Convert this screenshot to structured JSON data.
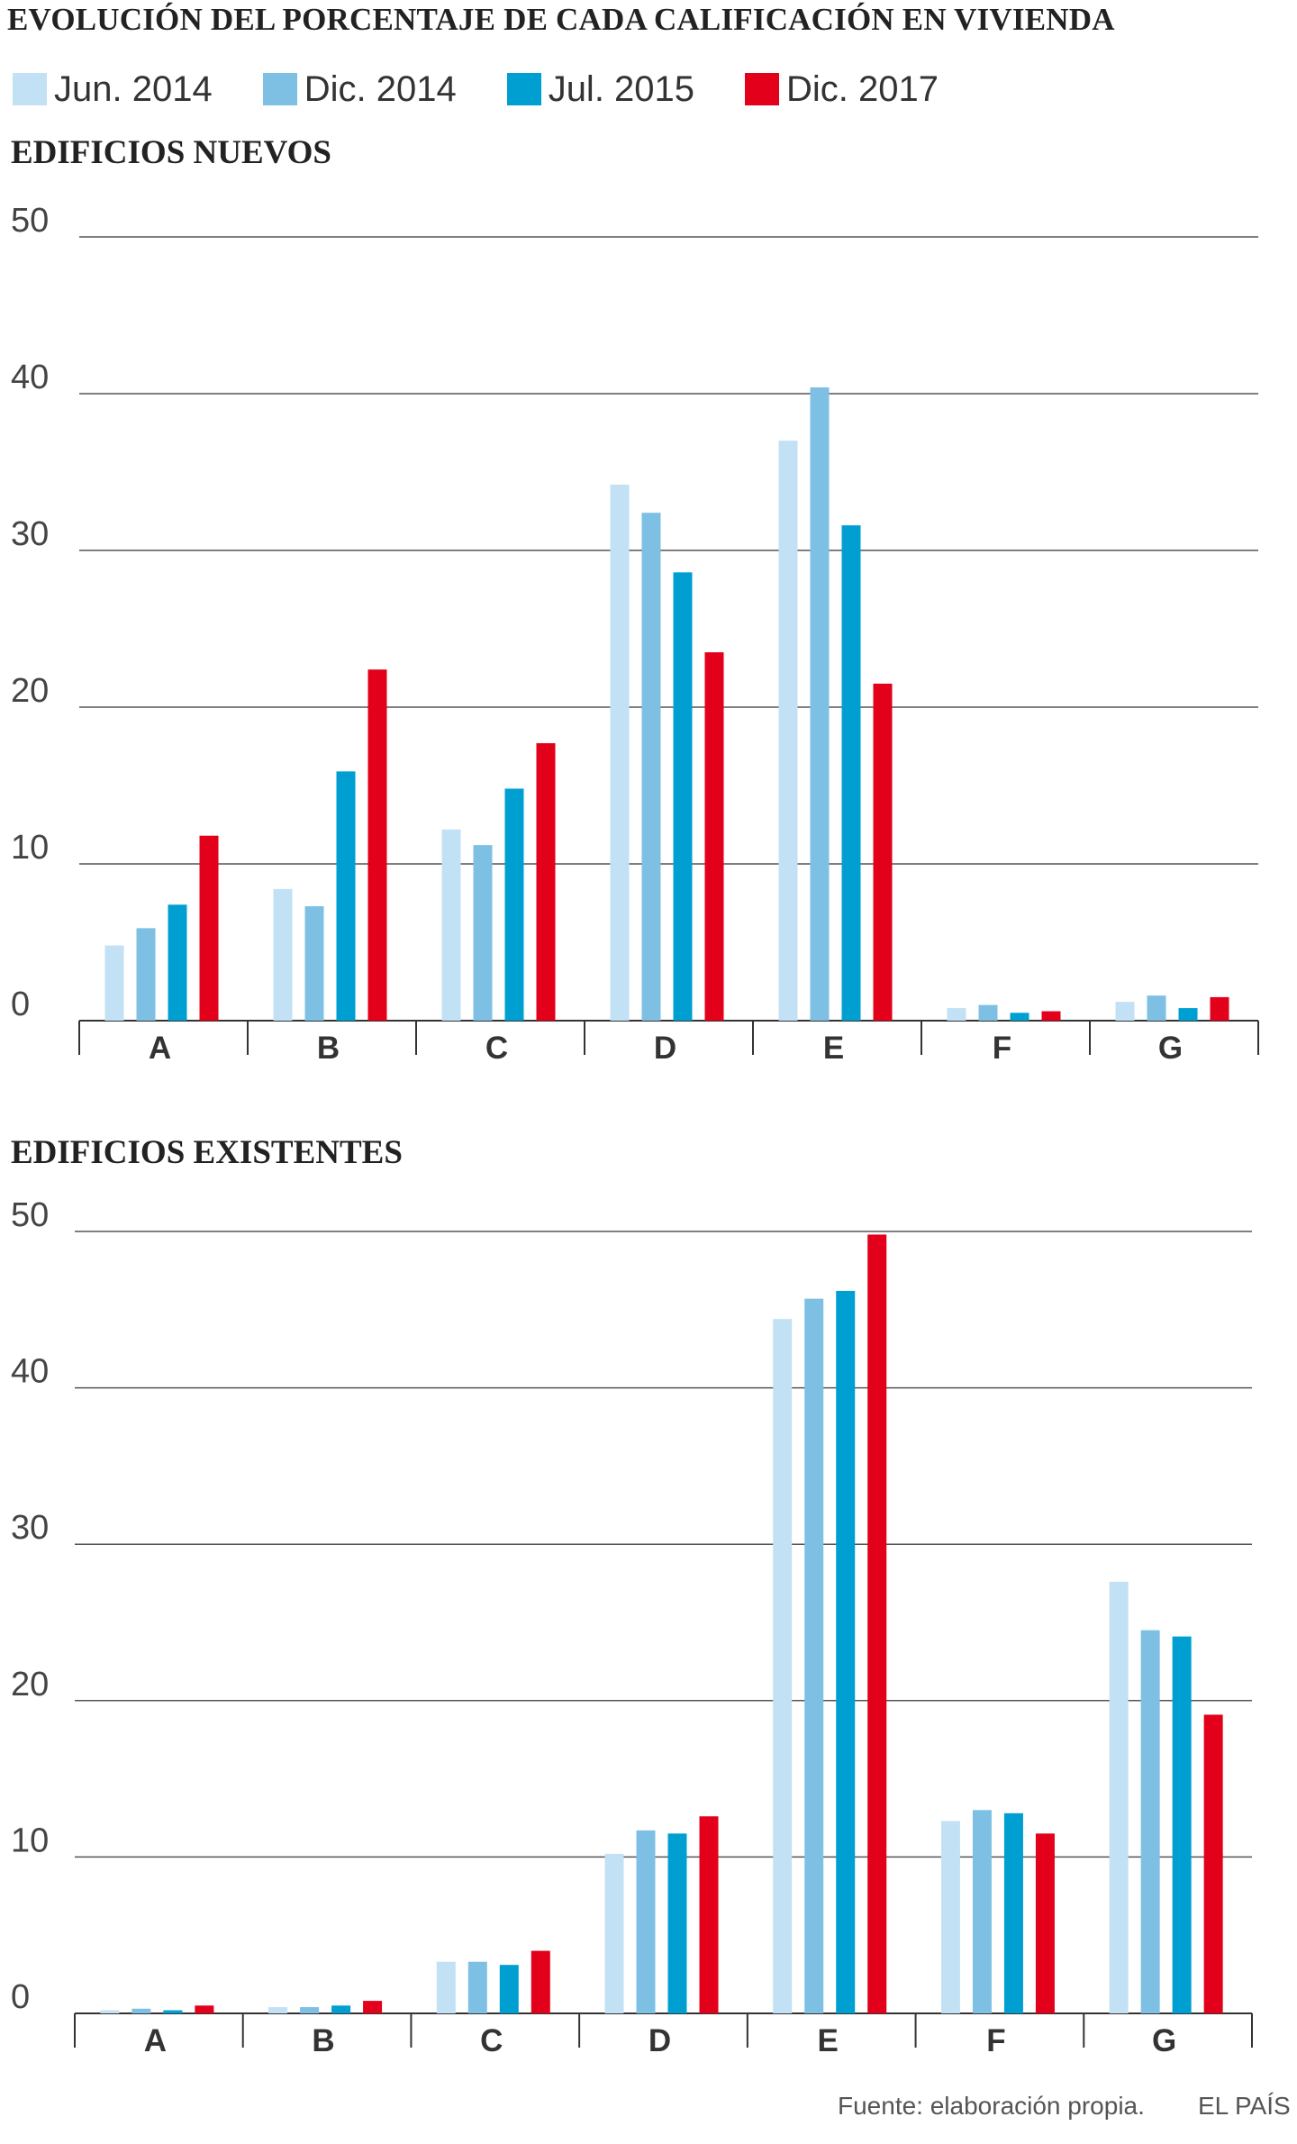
{
  "title": "EVOLUCIÓN DEL PORCENTAJE DE CADA CALIFICACIÓN EN VIVIENDA",
  "legend": [
    {
      "label": "Jun. 2014",
      "color": "#c3e1f4"
    },
    {
      "label": "Dic. 2014",
      "color": "#7ec0e4"
    },
    {
      "label": "Jul. 2015",
      "color": "#009fd2"
    },
    {
      "label": "Dic. 2017",
      "color": "#e2001a"
    }
  ],
  "chart_data": [
    {
      "type": "bar",
      "title": "EDIFICIOS NUEVOS",
      "categories": [
        "A",
        "B",
        "C",
        "D",
        "E",
        "F",
        "G"
      ],
      "series": [
        {
          "name": "Jun. 2014",
          "color": "#c3e1f4",
          "values": [
            4.8,
            8.4,
            12.2,
            34.2,
            37.0,
            0.8,
            1.2
          ]
        },
        {
          "name": "Dic. 2014",
          "color": "#7ec0e4",
          "values": [
            5.9,
            7.3,
            11.2,
            32.4,
            40.4,
            1.0,
            1.6
          ]
        },
        {
          "name": "Jul. 2015",
          "color": "#009fd2",
          "values": [
            7.4,
            15.9,
            14.8,
            28.6,
            31.6,
            0.5,
            0.8
          ]
        },
        {
          "name": "Dic. 2017",
          "color": "#e2001a",
          "values": [
            11.8,
            22.4,
            17.7,
            23.5,
            21.5,
            0.6,
            1.5
          ]
        }
      ],
      "ylim": [
        0,
        50
      ],
      "yticks": [
        0,
        10,
        20,
        30,
        40,
        50
      ],
      "xlabel": "",
      "ylabel": "",
      "grid": true
    },
    {
      "type": "bar",
      "title": "EDIFICIOS EXISTENTES",
      "categories": [
        "A",
        "B",
        "C",
        "D",
        "E",
        "F",
        "G"
      ],
      "series": [
        {
          "name": "Jun. 2014",
          "color": "#c3e1f4",
          "values": [
            0.2,
            0.4,
            3.3,
            10.2,
            44.4,
            12.3,
            27.6
          ]
        },
        {
          "name": "Dic. 2014",
          "color": "#7ec0e4",
          "values": [
            0.3,
            0.4,
            3.3,
            11.7,
            45.7,
            13.0,
            24.5
          ]
        },
        {
          "name": "Jul. 2015",
          "color": "#009fd2",
          "values": [
            0.2,
            0.5,
            3.1,
            11.5,
            46.2,
            12.8,
            24.1
          ]
        },
        {
          "name": "Dic. 2017",
          "color": "#e2001a",
          "values": [
            0.5,
            0.8,
            4.0,
            12.6,
            49.8,
            11.5,
            19.1
          ]
        }
      ],
      "ylim": [
        0,
        50
      ],
      "yticks": [
        0,
        10,
        20,
        30,
        40,
        50
      ],
      "xlabel": "",
      "ylabel": "",
      "grid": true
    }
  ],
  "footer": {
    "source": "Fuente: elaboración propia.",
    "brand": "EL PAÍS"
  }
}
